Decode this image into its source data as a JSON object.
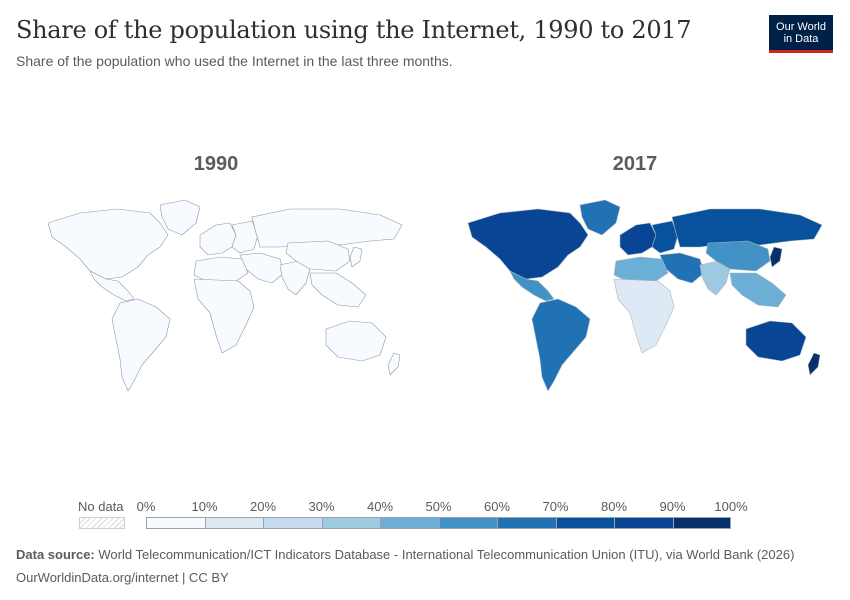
{
  "header": {
    "title": "Share of the population using the Internet, 1990 to 2017",
    "subtitle": "Share of the population who used the Internet in the last three months."
  },
  "logo": {
    "line1": "Our World",
    "line2": "in Data"
  },
  "maps": [
    {
      "year_label": "1990"
    },
    {
      "year_label": "2017"
    }
  ],
  "legend": {
    "no_data_label": "No data",
    "ticks": [
      "0%",
      "10%",
      "20%",
      "30%",
      "40%",
      "50%",
      "60%",
      "70%",
      "80%",
      "90%",
      "100%"
    ],
    "colors": [
      "#f7fbff",
      "#ddeaf6",
      "#c6dbef",
      "#9ecae1",
      "#6baed6",
      "#4292c6",
      "#2171b5",
      "#08519c",
      "#084594",
      "#08306b"
    ]
  },
  "region_values": {
    "y1990": {
      "north_america": 0.5,
      "greenland": 0,
      "central_america": 0,
      "south_america": 0,
      "europe_west": 0.2,
      "europe_east": 0,
      "russia": 0,
      "middle_east": 0,
      "africa_north": 0,
      "africa_sub": 0,
      "south_asia": 0,
      "china": 0,
      "southeast_asia": 0,
      "japan": 0,
      "australia": 0.5,
      "new_zealand": 0
    },
    "y2017": {
      "north_america": 88,
      "greenland": 63,
      "central_america": 58,
      "south_america": 62,
      "europe_west": 85,
      "europe_east": 72,
      "russia": 76,
      "middle_east": 65,
      "africa_north": 48,
      "africa_sub": 18,
      "south_asia": 32,
      "china": 54,
      "southeast_asia": 48,
      "japan": 91,
      "australia": 86,
      "new_zealand": 90
    }
  },
  "footer": {
    "source_label": "Data source:",
    "source_text": "World Telecommunication/ICT Indicators Database - International Telecommunication Union (ITU), via World Bank (2026)",
    "url_line": "OurWorldinData.org/internet | CC BY"
  }
}
